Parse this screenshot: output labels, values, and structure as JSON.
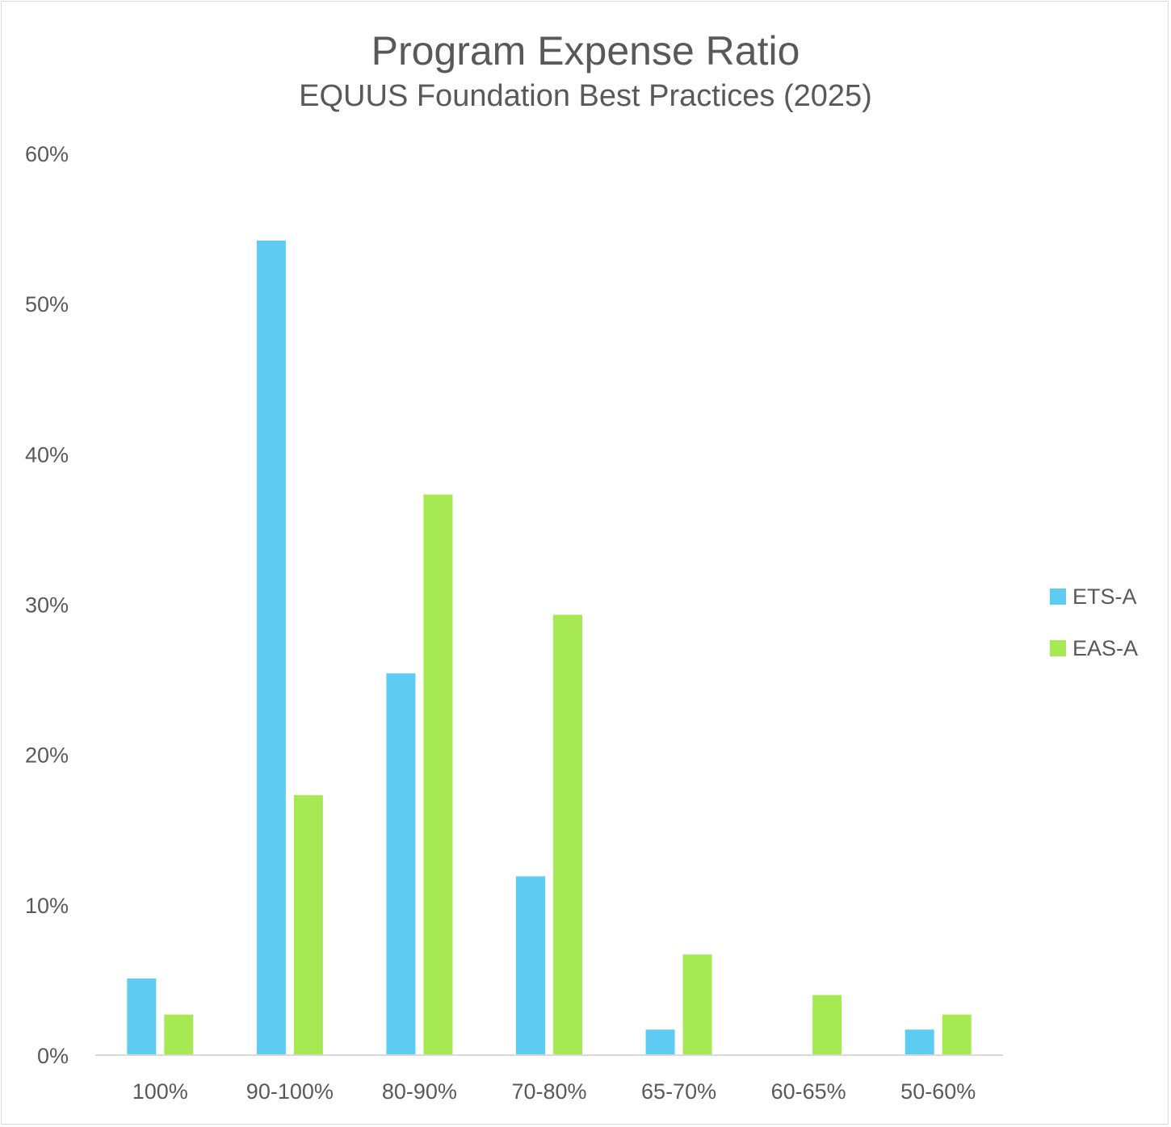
{
  "chart_data": {
    "type": "bar",
    "title": "Program Expense Ratio",
    "subtitle": "EQUUS Foundation Best Practices (2025)",
    "categories": [
      "100%",
      "90-100%",
      "80-90%",
      "70-80%",
      "65-70%",
      "60-65%",
      "50-60%"
    ],
    "series": [
      {
        "name": "ETS-A",
        "color": "#5ecbf3",
        "values": [
          5.1,
          54.2,
          25.4,
          11.9,
          1.7,
          0,
          1.7
        ]
      },
      {
        "name": "EAS-A",
        "color": "#a6e952",
        "values": [
          2.7,
          17.3,
          37.3,
          29.3,
          6.7,
          4.0,
          2.7
        ]
      }
    ],
    "ylim": [
      0,
      60
    ],
    "yticks": [
      0,
      10,
      20,
      30,
      40,
      50,
      60
    ],
    "ytick_labels": [
      "0%",
      "10%",
      "20%",
      "30%",
      "40%",
      "50%",
      "60%"
    ],
    "xlabel": "",
    "ylabel": "",
    "legend_position": "right",
    "grid": false
  }
}
